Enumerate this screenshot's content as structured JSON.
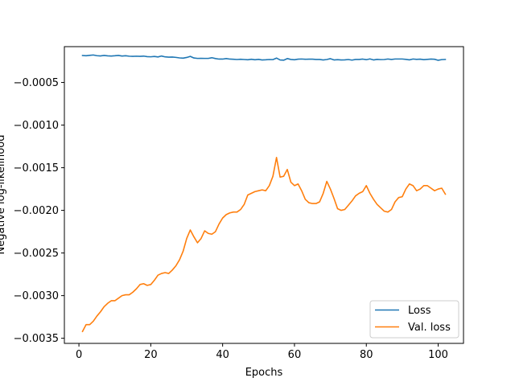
{
  "chart_data": {
    "type": "line",
    "title": "",
    "xlabel": "Epochs",
    "ylabel": "Negative log-likelihood",
    "xlim": [
      -4.05,
      107.05
    ],
    "ylim": [
      -0.00356,
      -8e-05
    ],
    "xticks": [
      0,
      20,
      40,
      60,
      80,
      100
    ],
    "xtick_labels": [
      "0",
      "20",
      "40",
      "60",
      "80",
      "100"
    ],
    "yticks": [
      -0.0035,
      -0.003,
      -0.0025,
      -0.002,
      -0.0015,
      -0.001,
      -0.0005
    ],
    "ytick_labels": [
      "−0.0035",
      "−0.0030",
      "−0.0025",
      "−0.0020",
      "−0.0015",
      "−0.0010",
      "−0.0005"
    ],
    "grid": false,
    "legend_position": "lower-right",
    "colors": {
      "Loss": "#1f77b4",
      "Val. loss": "#ff7f0e"
    },
    "series": [
      {
        "name": "Loss",
        "x": [
          1,
          2,
          3,
          4,
          5,
          6,
          7,
          8,
          9,
          10,
          11,
          12,
          13,
          14,
          15,
          16,
          17,
          18,
          19,
          20,
          21,
          22,
          23,
          24,
          25,
          26,
          27,
          28,
          29,
          30,
          31,
          32,
          33,
          34,
          35,
          36,
          37,
          38,
          39,
          40,
          41,
          42,
          43,
          44,
          45,
          46,
          47,
          48,
          49,
          50,
          51,
          52,
          53,
          54,
          55,
          56,
          57,
          58,
          59,
          60,
          61,
          62,
          63,
          64,
          65,
          66,
          67,
          68,
          69,
          70,
          71,
          72,
          73,
          74,
          75,
          76,
          77,
          78,
          79,
          80,
          81,
          82,
          83,
          84,
          85,
          86,
          87,
          88,
          89,
          90,
          91,
          92,
          93,
          94,
          95,
          96,
          97,
          98,
          99,
          100,
          101,
          102
        ],
        "values": [
          -0.000184,
          -0.000187,
          -0.000182,
          -0.000178,
          -0.000186,
          -0.000189,
          -0.000183,
          -0.000188,
          -0.00019,
          -0.000187,
          -0.000183,
          -0.00019,
          -0.000187,
          -0.000192,
          -0.000194,
          -0.000192,
          -0.000194,
          -0.000191,
          -0.000197,
          -0.000199,
          -0.000195,
          -0.000201,
          -0.00019,
          -0.0002,
          -0.000203,
          -0.000202,
          -0.000206,
          -0.000212,
          -0.000215,
          -0.000207,
          -0.000194,
          -0.000213,
          -0.000218,
          -0.000217,
          -0.000218,
          -0.000218,
          -0.00021,
          -0.00022,
          -0.000226,
          -0.000226,
          -0.00022,
          -0.000226,
          -0.000228,
          -0.000231,
          -0.000228,
          -0.000231,
          -0.000234,
          -0.000228,
          -0.000234,
          -0.000229,
          -0.000236,
          -0.000234,
          -0.000231,
          -0.000232,
          -0.000214,
          -0.000236,
          -0.000239,
          -0.00022,
          -0.00023,
          -0.000234,
          -0.000227,
          -0.000225,
          -0.000228,
          -0.000227,
          -0.000227,
          -0.00023,
          -0.00023,
          -0.000236,
          -0.000231,
          -0.000221,
          -0.000236,
          -0.000233,
          -0.000236,
          -0.000235,
          -0.000231,
          -0.000238,
          -0.00023,
          -0.00023,
          -0.000226,
          -0.000233,
          -0.000224,
          -0.000236,
          -0.000229,
          -0.000232,
          -0.000231,
          -0.000225,
          -0.00023,
          -0.000225,
          -0.000225,
          -0.000225,
          -0.000229,
          -0.000235,
          -0.000225,
          -0.000229,
          -0.000227,
          -0.000233,
          -0.000229,
          -0.000226,
          -0.000228,
          -0.00024,
          -0.000232,
          -0.00023
        ]
      },
      {
        "name": "Val. loss",
        "x": [
          1,
          2,
          3,
          4,
          5,
          6,
          7,
          8,
          9,
          10,
          11,
          12,
          13,
          14,
          15,
          16,
          17,
          18,
          19,
          20,
          21,
          22,
          23,
          24,
          25,
          26,
          27,
          28,
          29,
          30,
          31,
          32,
          33,
          34,
          35,
          36,
          37,
          38,
          39,
          40,
          41,
          42,
          43,
          44,
          45,
          46,
          47,
          48,
          49,
          50,
          51,
          52,
          53,
          54,
          55,
          56,
          57,
          58,
          59,
          60,
          61,
          62,
          63,
          64,
          65,
          66,
          67,
          68,
          69,
          70,
          71,
          72,
          73,
          74,
          75,
          76,
          77,
          78,
          79,
          80,
          81,
          82,
          83,
          84,
          85,
          86,
          87,
          88,
          89,
          90,
          91,
          92,
          93,
          94,
          95,
          96,
          97,
          98,
          99,
          100,
          101,
          102
        ],
        "values": [
          -0.00342,
          -0.00334,
          -0.00334,
          -0.0033,
          -0.00324,
          -0.00319,
          -0.00313,
          -0.00309,
          -0.00306,
          -0.00306,
          -0.00303,
          -0.003,
          -0.00299,
          -0.00299,
          -0.00296,
          -0.00292,
          -0.00287,
          -0.00286,
          -0.00288,
          -0.00287,
          -0.00282,
          -0.00276,
          -0.00274,
          -0.00273,
          -0.00274,
          -0.0027,
          -0.00265,
          -0.00258,
          -0.00248,
          -0.00233,
          -0.00223,
          -0.00231,
          -0.00238,
          -0.00233,
          -0.00224,
          -0.00227,
          -0.00228,
          -0.00225,
          -0.00216,
          -0.00209,
          -0.00205,
          -0.00203,
          -0.00202,
          -0.00202,
          -0.00199,
          -0.00193,
          -0.00182,
          -0.0018,
          -0.00178,
          -0.00177,
          -0.00176,
          -0.00177,
          -0.00171,
          -0.0016,
          -0.00138,
          -0.00161,
          -0.0016,
          -0.00152,
          -0.00167,
          -0.00171,
          -0.00169,
          -0.00177,
          -0.00187,
          -0.00191,
          -0.00192,
          -0.00192,
          -0.0019,
          -0.0018,
          -0.00166,
          -0.00175,
          -0.00186,
          -0.00198,
          -0.002,
          -0.00199,
          -0.00194,
          -0.00189,
          -0.00183,
          -0.0018,
          -0.00178,
          -0.00171,
          -0.0018,
          -0.00187,
          -0.00193,
          -0.00197,
          -0.00201,
          -0.00202,
          -0.00199,
          -0.0019,
          -0.00185,
          -0.00184,
          -0.00175,
          -0.00169,
          -0.00171,
          -0.00177,
          -0.00175,
          -0.00171,
          -0.00171,
          -0.00174,
          -0.00177,
          -0.00175,
          -0.00174,
          -0.00181
        ]
      }
    ]
  }
}
